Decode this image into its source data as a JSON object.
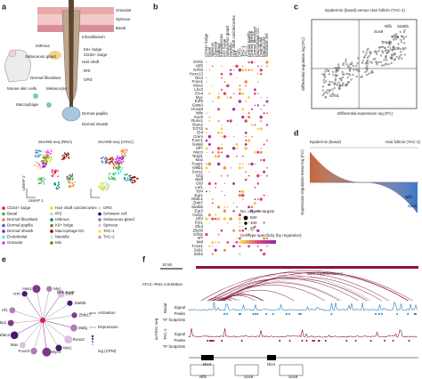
{
  "panels": {
    "a": {
      "label": "a",
      "tissue_labels": [
        "Granular",
        "Spinous",
        "Basal",
        "Infundibulum",
        "Isthmus",
        "Sebaceous gland",
        "Dermal fibroblast",
        "Melanocyte",
        "Macrophage",
        "Dermal papilla",
        "Dermal sheath",
        "Hair shaft",
        "IRS",
        "ORS",
        "K6+ bulge",
        "CD34+ bulge"
      ],
      "mouse": "Mouse skin cells",
      "umap_titles": [
        "SHARE-seq (RNA)",
        "SHARE-seq (ATAC)"
      ],
      "umap_x": "UMAP 1",
      "umap_y": "UMAP 2",
      "legend": [
        "CD34+ bulge",
        "Basal",
        "Dermal fibroblast",
        "Dermal papilla",
        "Dermal sheath",
        "Endothelial",
        "Granular",
        "Hair shaft cuticle/cortex",
        "IRS",
        "Isthmus",
        "K6+ bulge",
        "Macrophage DC",
        "Medulla",
        "Mix",
        "ORS",
        "Schwann cell",
        "Sebaceous gland",
        "Spinous",
        "TAC-1",
        "TAC-2"
      ]
    },
    "b": {
      "label": "b",
      "columns": [
        "CD34+ bulge",
        "Basal",
        "Spinous",
        "Granular",
        "Isthmus",
        "Infundibulum",
        "K6+ bulge",
        "Sebaceous gland",
        "Medulla",
        "Hair shaft cuticle/cortex",
        "IRS",
        "ORS",
        "TAC-1",
        "TAC-2",
        "Dermal papilla",
        "Dermal sheath",
        "Dermal fibroblast",
        "Macrophage DC",
        "Endothelial",
        "Melanocyte",
        "Schwann cell"
      ],
      "genes": [
        "Grhl1",
        "Klf5",
        "Grhl3",
        "Hoxc13",
        "Dlx3",
        "Foxo1",
        "Msx2",
        "Lhx2",
        "Etv4",
        "Myc",
        "E2f6",
        "Gata3",
        "Hoxa9",
        "Nfib",
        "Sox9",
        "Runx1",
        "Barx2",
        "Tcf7l2",
        "Ehf",
        "Crem",
        "Foxc1",
        "Gata6",
        "Klf7",
        "Mycn",
        "Tead1",
        "Max",
        "Foxp1",
        "Nfkb1",
        "Sox11",
        "Gli2",
        "Maff",
        "Gli3",
        "Lef1",
        "Tcf4",
        "Egr1",
        "Nfatc1",
        "Zbtb7",
        "Stat5b",
        "Egr3",
        "Ovol1",
        "Klf4",
        "Ets1",
        "Elk3",
        "Zfp36",
        "Grhl2",
        "Irf7",
        "Mitf",
        "Foxa1",
        "Zeb1",
        "Zeb2"
      ],
      "size_title": "No. of gene targets",
      "sizes": [
        "500",
        "100",
        "20"
      ],
      "color_title": "Cell-type specificity (by regulation)"
    },
    "c": {
      "label": "c",
      "title": "Epidermis (basal) versus Hair follicle (TAC-1)",
      "y_label": "Differential regulation log (FC)",
      "x_label": "Differential expression log (FC)",
      "genes": [
        "Nfib",
        "Sox9",
        "Stat5b",
        "Klf5",
        "Tead1",
        "Lhx2",
        "Foxc1",
        "Grhl1"
      ]
    },
    "d": {
      "label": "d",
      "left": "Epidermis (basal)",
      "right": "Hair follicle (TAC-1)",
      "y_label": "Expression regulation mean log (FC)",
      "genes": [
        "Nfib",
        "Sox9"
      ]
    },
    "e": {
      "label": "e",
      "nodes": [
        "Arnt",
        "Hes1",
        "Myc",
        "Elk3",
        "Stat5b",
        "Zbtb17",
        "Mafg",
        "Runx2",
        "Mxi1",
        "Mycn",
        "Foxo3",
        "Max",
        "Nfatc2",
        "Fubp1",
        "Irf1"
      ],
      "center": "Nfib Sox9",
      "legend": [
        "Activation",
        "Repression",
        "log (CPM)"
      ]
    },
    "f": {
      "label": "f",
      "scale": "10 kb",
      "superenhancer": "Dlx3 superenhancer",
      "correlation": "ATAC–RNA correlation",
      "tracks": [
        "Signal",
        "Peaks",
        "TF footprints"
      ],
      "groups": [
        "Basal",
        "TAC-1"
      ],
      "assay": "scATAC-seq",
      "genes": [
        "Dlx3",
        "Dlx4"
      ],
      "motifs": [
        "Nfib",
        "Sox9",
        "Sox9"
      ]
    }
  }
}
